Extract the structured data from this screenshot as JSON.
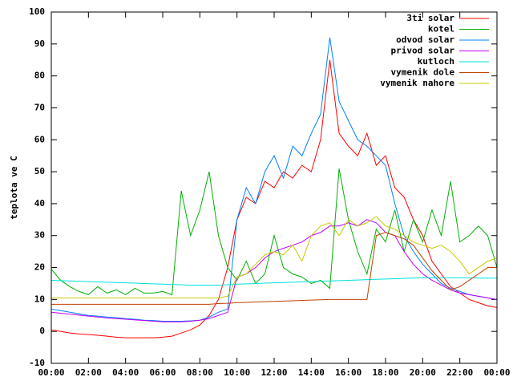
{
  "chart_data": {
    "type": "line",
    "y_label": "teplota ve C",
    "x": [
      0,
      0.5,
      1,
      1.5,
      2,
      2.5,
      3,
      3.5,
      4,
      4.5,
      5,
      5.5,
      6,
      6.5,
      7,
      7.5,
      8,
      8.5,
      9,
      9.5,
      10,
      10.5,
      11,
      11.5,
      12,
      12.5,
      13,
      13.5,
      14,
      14.5,
      15,
      15.5,
      16,
      16.5,
      17,
      17.5,
      18,
      18.5,
      19,
      19.5,
      20,
      20.5,
      21,
      21.5,
      22,
      22.5,
      23,
      23.5,
      24
    ],
    "xlim": [
      0,
      24
    ],
    "xticks": [
      {
        "value": 0,
        "label": "00:00"
      },
      {
        "value": 2,
        "label": "02:00"
      },
      {
        "value": 4,
        "label": "04:00"
      },
      {
        "value": 6,
        "label": "06:00"
      },
      {
        "value": 8,
        "label": "08:00"
      },
      {
        "value": 10,
        "label": "10:00"
      },
      {
        "value": 12,
        "label": "12:00"
      },
      {
        "value": 14,
        "label": "14:00"
      },
      {
        "value": 16,
        "label": "16:00"
      },
      {
        "value": 18,
        "label": "18:00"
      },
      {
        "value": 20,
        "label": "20:00"
      },
      {
        "value": 22,
        "label": "22:00"
      },
      {
        "value": 24,
        "label": "00:00"
      }
    ],
    "ylim": [
      -10,
      100
    ],
    "yticks": [
      -10,
      0,
      10,
      20,
      30,
      40,
      50,
      60,
      70,
      80,
      90,
      100
    ],
    "legend": "top-right",
    "series": [
      {
        "name": "3ti solar",
        "color": "#ff0000",
        "values": [
          0.5,
          0,
          -0.5,
          -0.8,
          -1,
          -1.2,
          -1.5,
          -1.8,
          -2,
          -2,
          -2,
          -2,
          -1.8,
          -1.5,
          -0.5,
          0.5,
          2,
          5,
          10,
          20,
          35,
          42,
          40,
          47,
          45,
          50,
          48,
          52,
          50,
          60,
          85,
          62,
          58,
          55,
          62,
          52,
          55,
          45,
          42,
          35,
          30,
          22,
          18,
          14,
          12,
          10,
          9,
          8,
          7.5
        ]
      },
      {
        "name": "kotel",
        "color": "#00b000",
        "values": [
          19.5,
          16,
          14,
          12.5,
          11.5,
          14,
          12,
          13,
          11.5,
          13.5,
          12,
          12,
          12.5,
          11.5,
          44,
          30,
          38,
          50,
          30,
          20,
          16,
          22,
          15,
          18,
          30,
          20,
          18,
          17,
          15,
          16,
          13.5,
          51,
          35,
          25,
          18,
          32,
          28,
          38,
          25,
          35,
          28,
          38,
          30,
          47,
          28,
          30,
          33,
          30,
          20
        ]
      },
      {
        "name": "odvod solar",
        "color": "#0080ff",
        "values": [
          7,
          6.5,
          6,
          5.5,
          5,
          4.8,
          4.5,
          4.3,
          4,
          3.8,
          3.5,
          3.4,
          3.2,
          3.2,
          3.2,
          3.3,
          3.5,
          4.5,
          6,
          7,
          35,
          45,
          40,
          50,
          55,
          48,
          58,
          55,
          62,
          68,
          92,
          72,
          66,
          60,
          58,
          55,
          52,
          40,
          30,
          25,
          21,
          18,
          15,
          13.5,
          12.5,
          11.5,
          11,
          10.5,
          10
        ]
      },
      {
        "name": "privod solar",
        "color": "#c000ff",
        "values": [
          6,
          5.7,
          5.4,
          5.1,
          4.8,
          4.5,
          4.2,
          4,
          3.8,
          3.6,
          3.4,
          3.2,
          3,
          3,
          3,
          3.2,
          3.5,
          4,
          5,
          6,
          17,
          18,
          20,
          23,
          25,
          26,
          27,
          28,
          30,
          31,
          33,
          33,
          34,
          33,
          35,
          34,
          31,
          30,
          25,
          21,
          18,
          16,
          14.5,
          13,
          12,
          11.5,
          11,
          10.5,
          10
        ]
      },
      {
        "name": "kutloch",
        "color": "#00e0e0",
        "values": [
          16,
          15.9,
          15.8,
          15.7,
          15.6,
          15.5,
          15.4,
          15.3,
          15.2,
          15.1,
          15,
          14.9,
          14.8,
          14.7,
          14.6,
          14.5,
          14.5,
          14.5,
          14.5,
          14.6,
          14.8,
          14.9,
          15,
          15.1,
          15.2,
          15.3,
          15.4,
          15.5,
          15.6,
          15.7,
          15.8,
          15.9,
          16,
          16.1,
          16.2,
          16.3,
          16.4,
          16.5,
          16.6,
          16.7,
          16.8,
          16.8,
          16.8,
          16.8,
          16.8,
          16.8,
          16.7,
          16.7,
          16.7
        ]
      },
      {
        "name": "vymenik dole",
        "color": "#c04000",
        "values": [
          8.5,
          8.5,
          8.5,
          8.5,
          8.5,
          8.5,
          8.5,
          8.5,
          8.5,
          8.5,
          8.5,
          8.5,
          8.5,
          8.5,
          8.5,
          8.5,
          8.5,
          8.5,
          8.7,
          8.8,
          9,
          9.1,
          9.2,
          9.3,
          9.4,
          9.5,
          9.6,
          9.7,
          9.8,
          9.9,
          10,
          10,
          10,
          10,
          10,
          30,
          31,
          30,
          29,
          27,
          23,
          19,
          16,
          13,
          14,
          16,
          18,
          20,
          20
        ]
      },
      {
        "name": "vymenik nahore",
        "color": "#c8c800",
        "values": [
          10.5,
          10.5,
          10.5,
          10.5,
          10.5,
          10.5,
          10.5,
          10.5,
          10.5,
          10.5,
          10.5,
          10.5,
          10.5,
          10.5,
          10.5,
          10.5,
          10.5,
          10.5,
          10.5,
          11,
          17,
          18,
          21,
          24,
          25,
          24,
          27,
          22,
          30,
          33,
          34,
          30,
          35,
          33,
          34,
          36,
          33,
          32,
          30,
          28,
          27,
          26,
          27,
          25,
          22,
          18,
          20,
          22,
          23
        ]
      }
    ]
  }
}
